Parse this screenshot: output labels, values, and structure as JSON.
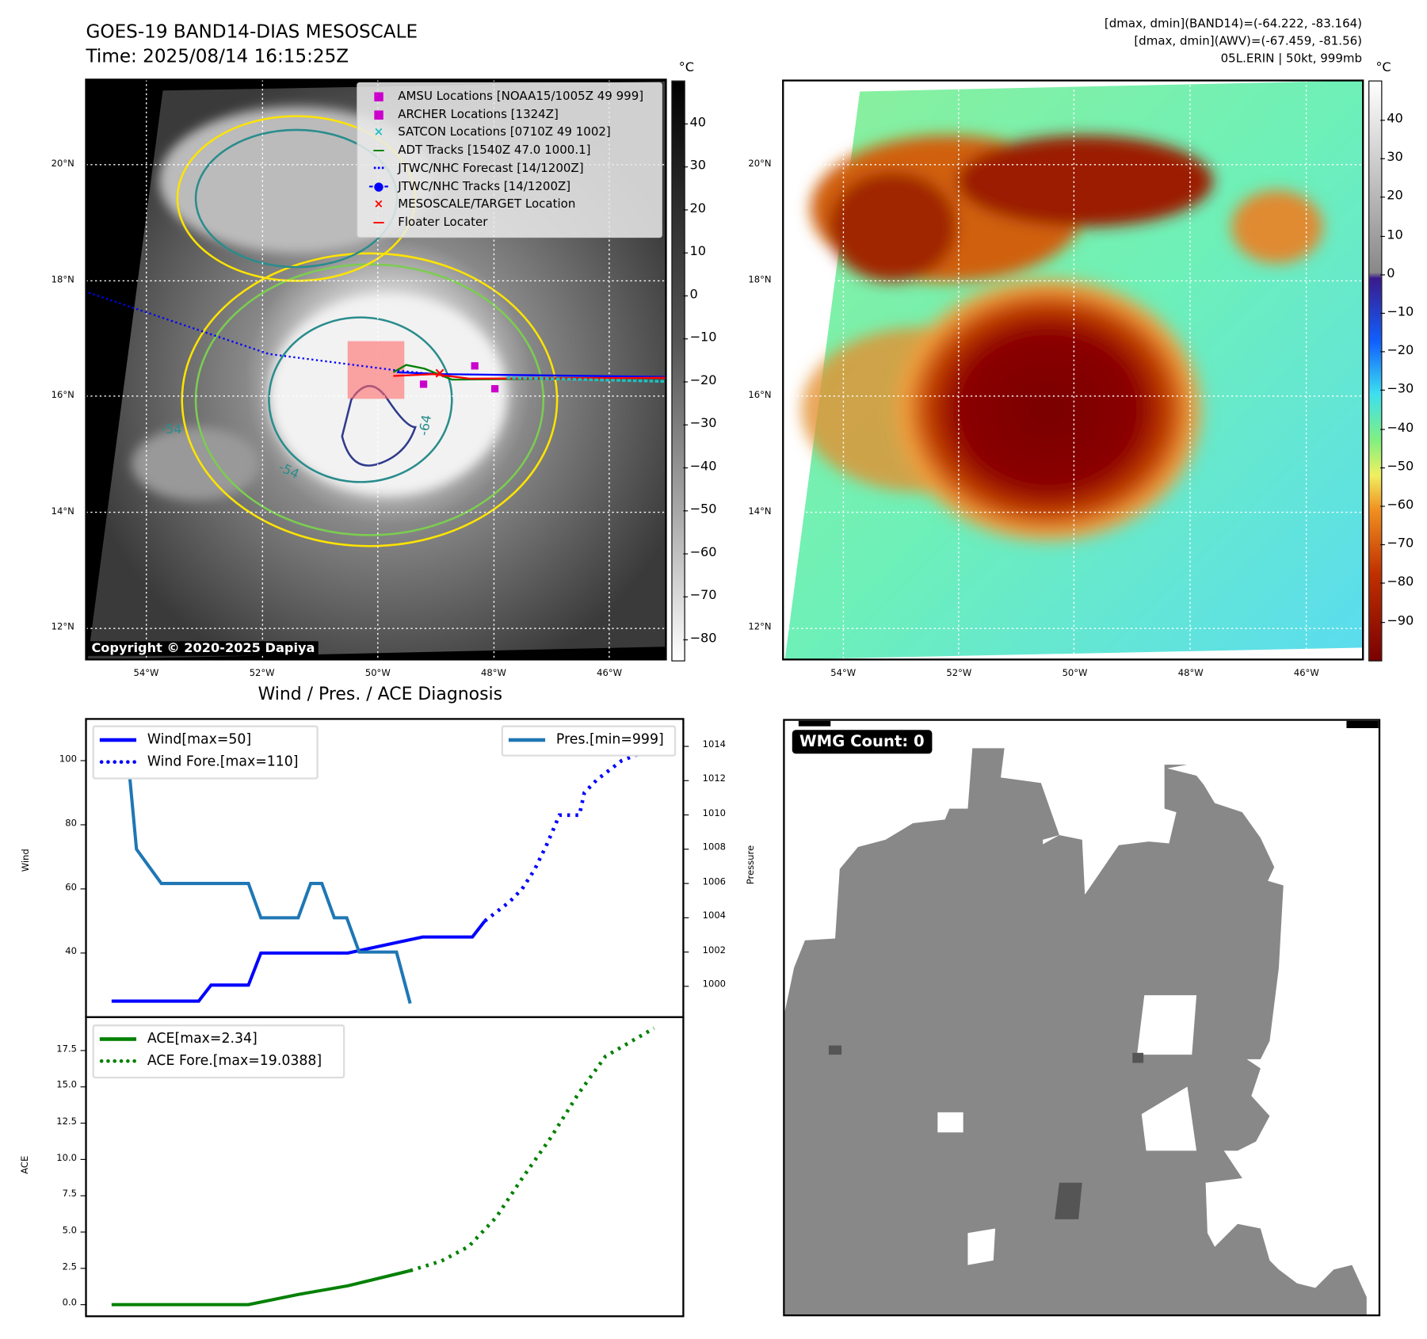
{
  "header": {
    "title": "GOES-19 BAND14-DIAS MESOSCALE",
    "time": "Time: 2025/08/14 16:15:25Z",
    "info_band14": "[dmax, dmin](BAND14)=(-64.222, -83.164)",
    "info_awv": "[dmax, dmin](AWV)=(-67.459, -81.56)",
    "storm": "05L.ERIN | 50kt, 999mb"
  },
  "map": {
    "lon_labels": [
      "54°W",
      "52°W",
      "50°W",
      "48°W",
      "46°W"
    ],
    "lat_labels": [
      "20°N",
      "18°N",
      "16°N",
      "14°N",
      "12°N"
    ],
    "copyright": "Copyright © 2020-2025 Dapiya",
    "contour_labels": [
      "-54",
      "-54",
      "-64"
    ],
    "legend": [
      {
        "label": "AMSU Locations [NOAA15/1005Z 49 999]",
        "marker": "■",
        "color": "#cc00cc"
      },
      {
        "label": "ARCHER Locations [1324Z]",
        "marker": "■",
        "color": "#cc00cc"
      },
      {
        "label": "SATCON Locations [0710Z 49 1002]",
        "marker": "×",
        "color": "#20c0c0"
      },
      {
        "label": "ADT Tracks [1540Z 47.0 1000.1]",
        "marker": "—",
        "color": "#008000"
      },
      {
        "label": "JTWC/NHC Forecast [14/1200Z]",
        "marker": "⋯",
        "color": "#0000ff"
      },
      {
        "label": "JTWC/NHC Tracks [14/1200Z]",
        "marker": "-●-",
        "color": "#0000ff"
      },
      {
        "label": "MESOSCALE/TARGET Location",
        "marker": "×",
        "color": "#ff0000"
      },
      {
        "label": "Floater Locater",
        "marker": "—",
        "color": "#ff0000"
      }
    ]
  },
  "colorbar1": {
    "unit": "°C",
    "ticks": [
      "40",
      "30",
      "20",
      "10",
      "0",
      "−10",
      "−20",
      "−30",
      "−40",
      "−50",
      "−60",
      "−70",
      "−80"
    ]
  },
  "colorbar2": {
    "unit": "°C",
    "ticks": [
      "40",
      "30",
      "20",
      "10",
      "0",
      "−10",
      "−20",
      "−30",
      "−40",
      "−50",
      "−60",
      "−70",
      "−80",
      "−90"
    ]
  },
  "wmg": {
    "label": "WMG Count: 0"
  },
  "chart_data": [
    {
      "type": "line",
      "title": "Wind / Pres. / ACE Diagnosis",
      "ylabel": "Wind",
      "y2label": "Pressure",
      "ylim": [
        20,
        113
      ],
      "y2lim": [
        998.2,
        1015.6
      ],
      "yticks": [
        "40",
        "60",
        "80",
        "100"
      ],
      "y2ticks": [
        "1000",
        "1002",
        "1004",
        "1006",
        "1008",
        "1010",
        "1012",
        "1014"
      ],
      "legend_left": [
        "Wind[max=50]",
        "Wind Fore.[max=110]"
      ],
      "legend_right": [
        "Pres.[min=999]"
      ],
      "series": [
        {
          "name": "Wind",
          "color": "#0000ff",
          "style": "solid",
          "x": [
            0,
            7,
            8,
            11,
            12,
            18,
            19,
            25,
            26,
            29,
            30
          ],
          "y": [
            25,
            25,
            30,
            30,
            40,
            40,
            40,
            45,
            45,
            45,
            50
          ]
        },
        {
          "name": "Wind Fore.",
          "color": "#0000ff",
          "style": "dotted",
          "x": [
            30,
            31,
            32,
            33,
            34,
            35,
            36,
            38,
            39,
            41,
            37.6,
            43,
            44.1
          ],
          "y": [
            50,
            53,
            56,
            60,
            66,
            74,
            83,
            90,
            94,
            100,
            83,
            103,
            105
          ]
        },
        {
          "name": "Pres.",
          "color": "#1f77b4",
          "style": "solid",
          "axis": "right",
          "x": [
            0,
            1.1,
            2,
            4,
            11,
            12,
            15,
            16,
            16.9,
            17.9,
            18.9,
            19.9,
            22.9,
            24
          ],
          "y": [
            1015,
            1015,
            1008,
            1006,
            1006,
            1004,
            1004,
            1006,
            1006,
            1004,
            1004,
            1002,
            1002,
            999
          ]
        }
      ]
    },
    {
      "type": "line",
      "ylabel": "ACE",
      "ylim": [
        -0.8,
        19.8
      ],
      "yticks": [
        "0.0",
        "2.5",
        "5.0",
        "7.5",
        "10.0",
        "12.5",
        "15.0",
        "17.5"
      ],
      "legend": [
        "ACE[max=2.34]",
        "ACE Fore.[max=19.0388]"
      ],
      "series": [
        {
          "name": "ACE",
          "color": "#008000",
          "style": "solid",
          "x": [
            0,
            11,
            15,
            19,
            24
          ],
          "y": [
            0,
            0,
            0.7,
            1.3,
            2.34
          ]
        },
        {
          "name": "ACE Fore.",
          "color": "#008000",
          "style": "dotted",
          "x": [
            24,
            26.5,
            28.7,
            30.9,
            33,
            35.3,
            37.5,
            39.7,
            43.6
          ],
          "y": [
            2.34,
            3,
            4,
            6,
            8.7,
            11.5,
            14.5,
            17.1,
            19.04
          ]
        }
      ]
    }
  ]
}
